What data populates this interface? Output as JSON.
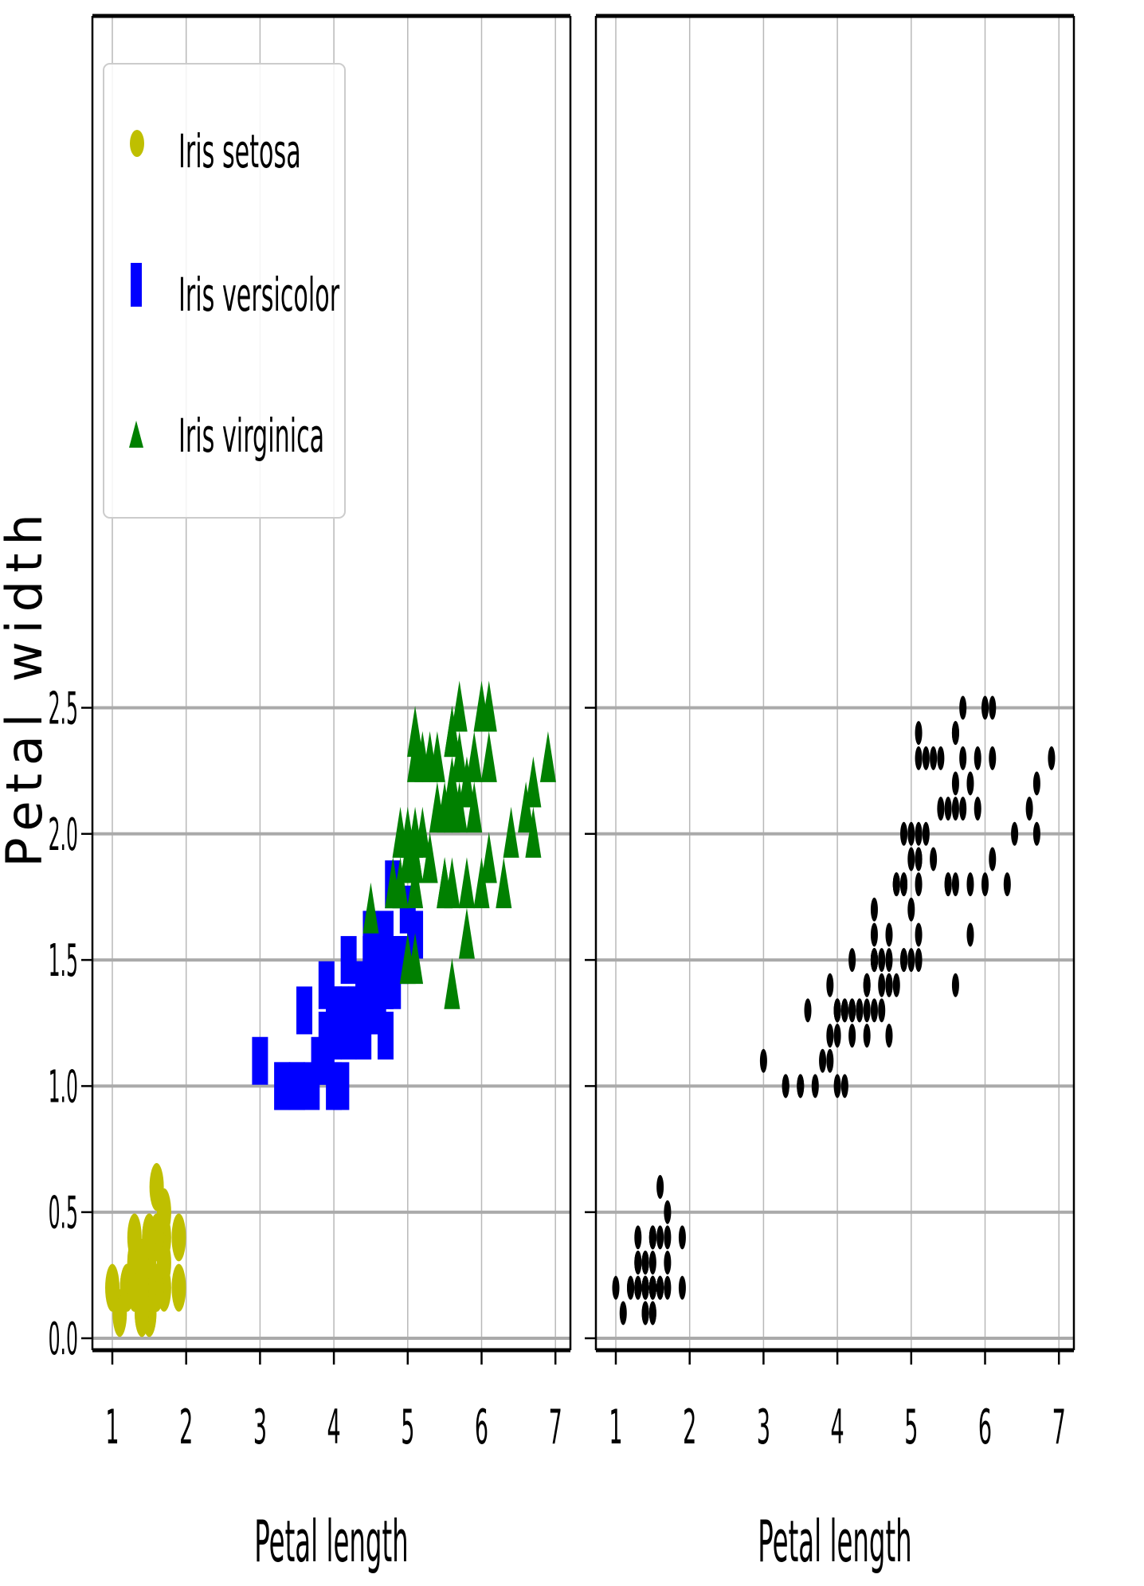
{
  "chart_data": [
    {
      "type": "scatter",
      "panel": "left",
      "xlabel": "Petal length",
      "ylabel": "Petal width",
      "xlim": [
        0.7,
        7.2
      ],
      "ylim": [
        -0.02,
        2.62
      ],
      "xticks": [
        "1",
        "2",
        "3",
        "4",
        "5",
        "6",
        "7"
      ],
      "yticks": [
        "0.0",
        "0.5",
        "1.0",
        "1.5",
        "2.0",
        "2.5"
      ],
      "grid": true,
      "legend": {
        "position": "upper-left",
        "entries": [
          "Iris setosa",
          "Iris versicolor",
          "Iris virginica"
        ]
      },
      "series": [
        {
          "name": "Iris setosa",
          "marker": "ellipse",
          "color": "#bfbf00",
          "points": [
            [
              1.4,
              0.2
            ],
            [
              1.4,
              0.2
            ],
            [
              1.3,
              0.2
            ],
            [
              1.5,
              0.2
            ],
            [
              1.4,
              0.2
            ],
            [
              1.7,
              0.4
            ],
            [
              1.4,
              0.3
            ],
            [
              1.5,
              0.2
            ],
            [
              1.4,
              0.2
            ],
            [
              1.5,
              0.1
            ],
            [
              1.5,
              0.2
            ],
            [
              1.6,
              0.2
            ],
            [
              1.4,
              0.1
            ],
            [
              1.1,
              0.1
            ],
            [
              1.2,
              0.2
            ],
            [
              1.5,
              0.4
            ],
            [
              1.3,
              0.4
            ],
            [
              1.4,
              0.3
            ],
            [
              1.7,
              0.3
            ],
            [
              1.5,
              0.3
            ],
            [
              1.7,
              0.2
            ],
            [
              1.5,
              0.4
            ],
            [
              1.0,
              0.2
            ],
            [
              1.7,
              0.5
            ],
            [
              1.9,
              0.2
            ],
            [
              1.6,
              0.2
            ],
            [
              1.6,
              0.4
            ],
            [
              1.5,
              0.2
            ],
            [
              1.4,
              0.2
            ],
            [
              1.6,
              0.2
            ],
            [
              1.6,
              0.2
            ],
            [
              1.5,
              0.4
            ],
            [
              1.5,
              0.1
            ],
            [
              1.4,
              0.2
            ],
            [
              1.5,
              0.2
            ],
            [
              1.2,
              0.2
            ],
            [
              1.3,
              0.2
            ],
            [
              1.4,
              0.1
            ],
            [
              1.3,
              0.2
            ],
            [
              1.5,
              0.2
            ],
            [
              1.3,
              0.3
            ],
            [
              1.3,
              0.3
            ],
            [
              1.3,
              0.2
            ],
            [
              1.6,
              0.6
            ],
            [
              1.9,
              0.4
            ],
            [
              1.4,
              0.3
            ],
            [
              1.6,
              0.2
            ],
            [
              1.4,
              0.2
            ],
            [
              1.5,
              0.2
            ],
            [
              1.4,
              0.2
            ]
          ]
        },
        {
          "name": "Iris versicolor",
          "marker": "square",
          "color": "#0000ff",
          "points": [
            [
              4.7,
              1.4
            ],
            [
              4.5,
              1.5
            ],
            [
              4.9,
              1.5
            ],
            [
              4.0,
              1.3
            ],
            [
              4.6,
              1.5
            ],
            [
              4.5,
              1.3
            ],
            [
              4.7,
              1.6
            ],
            [
              3.3,
              1.0
            ],
            [
              4.6,
              1.3
            ],
            [
              3.9,
              1.4
            ],
            [
              3.5,
              1.0
            ],
            [
              4.2,
              1.5
            ],
            [
              4.0,
              1.0
            ],
            [
              4.7,
              1.4
            ],
            [
              3.6,
              1.3
            ],
            [
              4.4,
              1.4
            ],
            [
              4.5,
              1.5
            ],
            [
              4.1,
              1.0
            ],
            [
              4.5,
              1.5
            ],
            [
              3.9,
              1.1
            ],
            [
              4.8,
              1.8
            ],
            [
              4.0,
              1.3
            ],
            [
              4.9,
              1.5
            ],
            [
              4.7,
              1.2
            ],
            [
              4.3,
              1.3
            ],
            [
              4.4,
              1.4
            ],
            [
              4.8,
              1.4
            ],
            [
              5.0,
              1.7
            ],
            [
              4.5,
              1.5
            ],
            [
              3.5,
              1.0
            ],
            [
              3.8,
              1.1
            ],
            [
              3.7,
              1.0
            ],
            [
              3.9,
              1.2
            ],
            [
              5.1,
              1.6
            ],
            [
              4.5,
              1.5
            ],
            [
              4.5,
              1.6
            ],
            [
              4.7,
              1.5
            ],
            [
              4.4,
              1.3
            ],
            [
              4.1,
              1.3
            ],
            [
              4.0,
              1.3
            ],
            [
              4.4,
              1.2
            ],
            [
              4.6,
              1.4
            ],
            [
              4.0,
              1.2
            ],
            [
              3.3,
              1.0
            ],
            [
              4.2,
              1.3
            ],
            [
              4.2,
              1.2
            ],
            [
              4.2,
              1.3
            ],
            [
              4.3,
              1.3
            ],
            [
              3.0,
              1.1
            ],
            [
              4.1,
              1.3
            ]
          ]
        },
        {
          "name": "Iris virginica",
          "marker": "triangle",
          "color": "#008000",
          "points": [
            [
              6.0,
              2.5
            ],
            [
              5.1,
              1.9
            ],
            [
              5.9,
              2.1
            ],
            [
              5.6,
              1.8
            ],
            [
              5.8,
              2.2
            ],
            [
              6.6,
              2.1
            ],
            [
              4.5,
              1.7
            ],
            [
              6.3,
              1.8
            ],
            [
              5.8,
              1.8
            ],
            [
              6.1,
              2.5
            ],
            [
              5.1,
              2.0
            ],
            [
              5.3,
              1.9
            ],
            [
              5.5,
              2.1
            ],
            [
              5.0,
              2.0
            ],
            [
              5.1,
              2.4
            ],
            [
              5.3,
              2.3
            ],
            [
              5.5,
              1.8
            ],
            [
              6.7,
              2.2
            ],
            [
              6.9,
              2.3
            ],
            [
              5.0,
              1.5
            ],
            [
              5.7,
              2.3
            ],
            [
              4.9,
              2.0
            ],
            [
              6.7,
              2.0
            ],
            [
              4.9,
              1.8
            ],
            [
              5.7,
              2.1
            ],
            [
              6.0,
              1.8
            ],
            [
              4.8,
              1.8
            ],
            [
              4.9,
              1.8
            ],
            [
              5.6,
              2.1
            ],
            [
              5.8,
              1.6
            ],
            [
              6.1,
              1.9
            ],
            [
              6.4,
              2.0
            ],
            [
              5.6,
              2.2
            ],
            [
              5.1,
              1.5
            ],
            [
              5.6,
              1.4
            ],
            [
              6.1,
              2.3
            ],
            [
              5.6,
              2.4
            ],
            [
              5.5,
              1.8
            ],
            [
              4.8,
              1.8
            ],
            [
              5.4,
              2.1
            ],
            [
              5.6,
              2.4
            ],
            [
              5.1,
              2.3
            ],
            [
              5.1,
              1.9
            ],
            [
              5.9,
              2.3
            ],
            [
              5.7,
              2.5
            ],
            [
              5.2,
              2.3
            ],
            [
              5.0,
              1.9
            ],
            [
              5.2,
              2.0
            ],
            [
              5.4,
              2.3
            ],
            [
              5.1,
              1.8
            ]
          ]
        }
      ]
    },
    {
      "type": "scatter",
      "panel": "right",
      "xlabel": "Petal length",
      "xlim": [
        0.7,
        7.2
      ],
      "ylim": [
        -0.02,
        2.62
      ],
      "xticks": [
        "1",
        "2",
        "3",
        "4",
        "5",
        "6",
        "7"
      ],
      "grid": true,
      "series": [
        {
          "marker": "ellipse",
          "color": "#000000",
          "points_from": "all_left_series"
        }
      ]
    }
  ]
}
